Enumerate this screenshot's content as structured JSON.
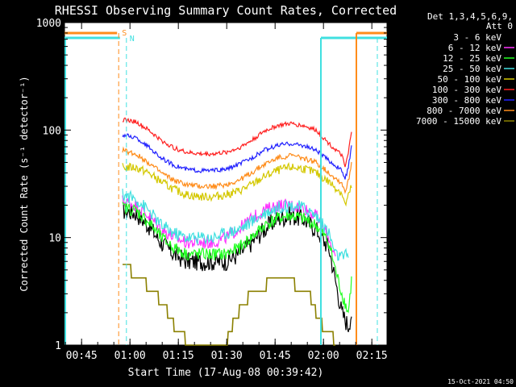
{
  "chart_data": {
    "type": "line",
    "title": "RHESSI Observing Summary Count Rates, Corrected",
    "xlabel": "Start Time (17-Aug-08 00:39:42)",
    "ylabel": "Corrected Count Rate (s⁻¹ detector⁻¹)",
    "yscale": "log",
    "ylim": [
      1,
      1000
    ],
    "xlim_minutes": [
      0,
      100
    ],
    "x_ticks": [
      "00:45",
      "01:00",
      "01:15",
      "01:30",
      "01:45",
      "02:00",
      "02:15"
    ],
    "x_tick_minutes": [
      5.3,
      20.3,
      35.3,
      50.3,
      65.3,
      80.3,
      95.3
    ],
    "y_ticks": [
      "1",
      "10",
      "100",
      "1000"
    ],
    "y_tick_values": [
      1,
      10,
      100,
      1000
    ],
    "legend_header": [
      "Det 1,3,4,5,6,9,",
      "Att 0"
    ],
    "legend_position": "right",
    "footer": "15-Oct-2021 04:50",
    "markers": [
      {
        "label": "S",
        "minute": 16.8,
        "color": "#ff8c1a"
      },
      {
        "label": "N",
        "minute": 19.2,
        "color": "#40e0e0"
      }
    ],
    "series": [
      {
        "name": "3 - 6 keV",
        "color": "#000000",
        "x": [
          18,
          22,
          26,
          30,
          34,
          38,
          42,
          46,
          50,
          54,
          58,
          62,
          66,
          70,
          74,
          78,
          82,
          84,
          86,
          88,
          89
        ],
        "y": [
          18,
          17,
          13,
          9,
          7,
          6,
          6,
          6,
          6,
          7,
          9,
          12,
          15,
          16,
          15,
          12,
          8,
          4,
          2,
          1.5,
          2
        ]
      },
      {
        "name": "6 - 12 keV",
        "color": "#ff33ff",
        "x": [
          18,
          22,
          26,
          30,
          34,
          38,
          42,
          46,
          50,
          54,
          58,
          62,
          66,
          70,
          74,
          78,
          82,
          84
        ],
        "y": [
          22,
          20,
          16,
          12,
          10,
          9,
          9,
          9,
          10,
          12,
          15,
          18,
          20,
          20,
          19,
          16,
          10,
          6.5
        ]
      },
      {
        "name": "12 - 25 keV",
        "color": "#22ff22",
        "x": [
          18,
          22,
          26,
          30,
          34,
          38,
          42,
          46,
          50,
          54,
          58,
          62,
          66,
          70,
          74,
          78,
          82,
          84,
          86,
          88,
          89
        ],
        "y": [
          19,
          18,
          14,
          10,
          8,
          7,
          7,
          7,
          7,
          8,
          10,
          13,
          15,
          16,
          15,
          13,
          9,
          5,
          3,
          2,
          4
        ]
      },
      {
        "name": "25 - 50 keV",
        "color": "#40e0e0",
        "x": [
          18,
          22,
          26,
          30,
          34,
          38,
          42,
          46,
          50,
          54,
          58,
          62,
          66,
          70,
          74,
          78,
          82,
          84,
          86,
          88
        ],
        "y": [
          25,
          23,
          18,
          13,
          11,
          10,
          10,
          10,
          11,
          12,
          14,
          17,
          19,
          20,
          19,
          16,
          11,
          7,
          6.5,
          7
        ]
      },
      {
        "name": "50 - 100 keV",
        "color": "#d4c800",
        "x": [
          18,
          22,
          26,
          30,
          34,
          38,
          42,
          46,
          50,
          54,
          58,
          62,
          66,
          70,
          74,
          78,
          82,
          86,
          87,
          88,
          89
        ],
        "y": [
          45,
          45,
          40,
          33,
          28,
          25,
          24,
          24,
          25,
          27,
          31,
          37,
          42,
          45,
          44,
          40,
          33,
          26,
          20,
          24,
          30
        ]
      },
      {
        "name": "100 - 300 keV",
        "color": "#ff2020",
        "x": [
          18,
          22,
          26,
          30,
          34,
          38,
          42,
          46,
          50,
          54,
          58,
          62,
          66,
          70,
          74,
          78,
          82,
          86,
          87,
          88,
          89
        ],
        "y": [
          125,
          120,
          100,
          80,
          68,
          62,
          60,
          60,
          62,
          68,
          80,
          98,
          110,
          115,
          110,
          100,
          75,
          58,
          45,
          60,
          100
        ]
      },
      {
        "name": "300 - 800 keV",
        "color": "#2222ff",
        "x": [
          18,
          22,
          26,
          30,
          34,
          38,
          42,
          46,
          50,
          54,
          58,
          62,
          66,
          70,
          74,
          78,
          82,
          86,
          87,
          88,
          89
        ],
        "y": [
          90,
          85,
          70,
          55,
          47,
          43,
          42,
          42,
          43,
          48,
          55,
          65,
          72,
          75,
          72,
          65,
          52,
          42,
          35,
          45,
          70
        ]
      },
      {
        "name": "800 - 7000 keV",
        "color": "#ff8c1a",
        "x": [
          18,
          22,
          26,
          30,
          34,
          38,
          42,
          46,
          50,
          54,
          58,
          62,
          66,
          70,
          74,
          78,
          82,
          86,
          87,
          88,
          89
        ],
        "y": [
          65,
          60,
          50,
          40,
          34,
          31,
          30,
          30,
          31,
          34,
          40,
          48,
          55,
          58,
          55,
          50,
          40,
          32,
          27,
          33,
          50
        ]
      },
      {
        "name": "7000 - 15000 keV",
        "color": "#8b8000",
        "x": [
          18,
          20,
          22,
          24,
          26,
          28,
          30,
          32,
          34,
          36,
          38,
          42,
          46,
          48,
          50,
          52,
          54,
          56,
          58,
          60,
          62,
          64,
          66,
          68,
          70,
          72,
          74,
          76,
          78,
          80,
          82,
          84
        ],
        "y": [
          5,
          5,
          4.5,
          4,
          3.5,
          3,
          2.5,
          2,
          1.5,
          1.5,
          1,
          1,
          1,
          1,
          1,
          1.5,
          2,
          2.5,
          3,
          3,
          3.5,
          4,
          4,
          4,
          4,
          3.5,
          3,
          3,
          2,
          1.5,
          1.5,
          1
        ]
      }
    ]
  }
}
